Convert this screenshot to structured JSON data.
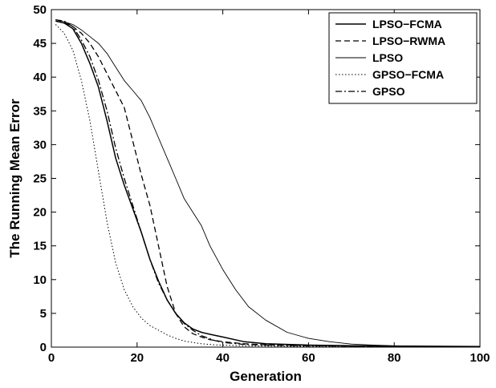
{
  "chart_data": {
    "type": "line",
    "xlabel": "Generation",
    "ylabel": "The Running Mean Error",
    "xlim": [
      0,
      100
    ],
    "ylim": [
      0,
      50
    ],
    "x_ticks": [
      0,
      20,
      40,
      60,
      80,
      100
    ],
    "y_ticks": [
      0,
      5,
      10,
      15,
      20,
      25,
      30,
      35,
      40,
      45,
      50
    ],
    "grid": false,
    "legend_position": "top-right",
    "series": [
      {
        "name": "LPSO−FCMA",
        "style": "solid",
        "width": 1.5,
        "x": [
          1,
          3,
          5,
          7,
          9,
          11,
          13,
          15,
          17,
          19,
          21,
          23,
          25,
          27,
          29,
          31,
          33,
          35,
          37,
          40,
          45,
          50,
          60,
          70,
          80,
          100
        ],
        "y": [
          48.3,
          48.0,
          47.2,
          45.0,
          42.0,
          38.5,
          33.5,
          28.0,
          24.0,
          20.5,
          17.0,
          13.0,
          9.8,
          7.0,
          5.0,
          3.6,
          2.7,
          2.2,
          1.9,
          1.5,
          0.8,
          0.5,
          0.3,
          0.2,
          0.15,
          0.1
        ]
      },
      {
        "name": "LPSO−RWMA",
        "style": "dashed",
        "width": 1.3,
        "x": [
          1,
          3,
          5,
          7,
          9,
          11,
          13,
          15,
          17,
          19,
          21,
          23,
          25,
          27,
          29,
          31,
          33,
          35,
          37,
          40,
          45,
          50,
          60,
          70,
          80,
          100
        ],
        "y": [
          48.3,
          48.1,
          47.5,
          46.5,
          45.0,
          43.0,
          40.5,
          38.0,
          35.5,
          30.5,
          25.5,
          21.0,
          15.0,
          9.0,
          5.0,
          3.0,
          2.0,
          1.5,
          1.1,
          0.8,
          0.5,
          0.35,
          0.25,
          0.15,
          0.1,
          0.08
        ]
      },
      {
        "name": "LPSO",
        "style": "solid",
        "width": 0.9,
        "x": [
          1,
          3,
          5,
          7,
          9,
          11,
          13,
          15,
          17,
          19,
          21,
          23,
          25,
          27,
          29,
          31,
          33,
          35,
          37,
          40,
          43,
          46,
          50,
          55,
          60,
          65,
          70,
          75,
          80,
          90,
          100
        ],
        "y": [
          48.5,
          48.2,
          47.8,
          47.0,
          46.0,
          45.0,
          43.5,
          41.5,
          39.5,
          38.0,
          36.5,
          34.0,
          31.0,
          28.0,
          25.0,
          22.0,
          20.0,
          18.0,
          15.0,
          11.5,
          8.5,
          6.0,
          4.0,
          2.2,
          1.3,
          0.8,
          0.45,
          0.3,
          0.2,
          0.1,
          0.1
        ]
      },
      {
        "name": "GPSO−FCMA",
        "style": "dotted",
        "width": 1.0,
        "x": [
          1,
          3,
          5,
          7,
          9,
          11,
          13,
          15,
          17,
          19,
          21,
          23,
          25,
          27,
          29,
          31,
          33,
          35,
          38,
          40,
          45,
          50,
          60,
          80,
          100
        ],
        "y": [
          47.8,
          46.5,
          44.0,
          39.5,
          33.5,
          26.0,
          18.5,
          12.5,
          8.5,
          6.0,
          4.3,
          3.2,
          2.5,
          1.8,
          1.3,
          0.9,
          0.7,
          0.5,
          0.35,
          0.3,
          0.2,
          0.15,
          0.1,
          0.05,
          0.05
        ]
      },
      {
        "name": "GPSO",
        "style": "dashdot",
        "width": 1.3,
        "x": [
          1,
          3,
          5,
          7,
          9,
          11,
          13,
          15,
          17,
          19,
          21,
          23,
          25,
          27,
          29,
          31,
          33,
          35,
          38,
          40,
          45,
          50,
          60,
          80,
          100
        ],
        "y": [
          48.5,
          48.3,
          47.5,
          45.5,
          43.0,
          39.5,
          35.0,
          29.5,
          25.0,
          21.0,
          17.0,
          13.0,
          9.5,
          7.0,
          5.0,
          3.5,
          2.5,
          1.7,
          1.0,
          0.7,
          0.4,
          0.3,
          0.2,
          0.1,
          0.1
        ]
      }
    ]
  }
}
